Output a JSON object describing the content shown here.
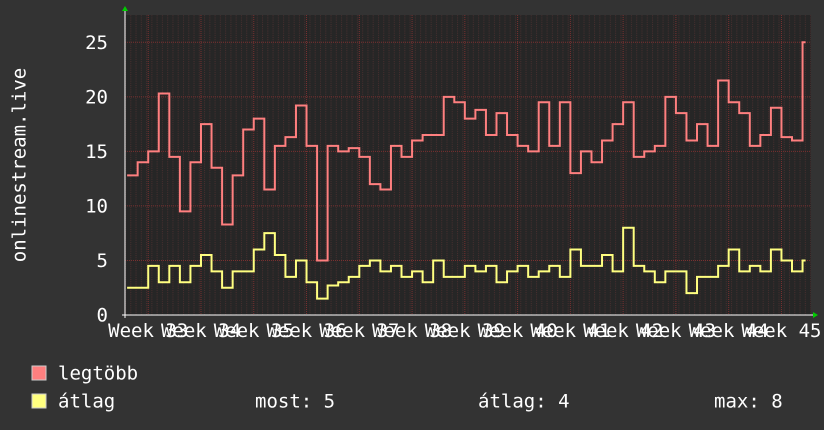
{
  "chart_data": {
    "type": "line",
    "y_label": "onlinestream.live",
    "xlim": [
      32.56,
      45.56
    ],
    "xticks": [
      {
        "value": 33,
        "label": "Week 33"
      },
      {
        "value": 34,
        "label": "Week 34"
      },
      {
        "value": 35,
        "label": "Week 35"
      },
      {
        "value": 36,
        "label": "Week 36"
      },
      {
        "value": 37,
        "label": "Week 37"
      },
      {
        "value": 38,
        "label": "Week 38"
      },
      {
        "value": 39,
        "label": "Week 39"
      },
      {
        "value": 40,
        "label": "Week 40"
      },
      {
        "value": 41,
        "label": "Week 41"
      },
      {
        "value": 42,
        "label": "Week 42"
      },
      {
        "value": 43,
        "label": "Week 43"
      },
      {
        "value": 44,
        "label": "Week 44"
      },
      {
        "value": 45,
        "label": "Week 45"
      }
    ],
    "ylim": [
      0,
      27.5
    ],
    "yticks": [
      0,
      5,
      10,
      15,
      20,
      25
    ],
    "grid": true,
    "step": true,
    "x": [
      32.6,
      32.8,
      33.0,
      33.2,
      33.4,
      33.6,
      33.8,
      34.0,
      34.2,
      34.4,
      34.6,
      34.8,
      35.0,
      35.2,
      35.4,
      35.6,
      35.8,
      36.0,
      36.2,
      36.4,
      36.6,
      36.8,
      37.0,
      37.2,
      37.4,
      37.6,
      37.8,
      38.0,
      38.2,
      38.4,
      38.6,
      38.8,
      39.0,
      39.2,
      39.4,
      39.6,
      39.8,
      40.0,
      40.2,
      40.4,
      40.6,
      40.8,
      41.0,
      41.2,
      41.4,
      41.6,
      41.8,
      42.0,
      42.2,
      42.4,
      42.6,
      42.8,
      43.0,
      43.2,
      43.4,
      43.6,
      43.8,
      44.0,
      44.2,
      44.4,
      44.6,
      44.8,
      45.0,
      45.2,
      45.4
    ],
    "series": [
      {
        "name": "legtöbb",
        "color": "#ff7f7f",
        "values": [
          12.8,
          14,
          15,
          20.3,
          14.5,
          9.5,
          14,
          17.5,
          13.5,
          8.3,
          12.8,
          17,
          18,
          11.5,
          15.5,
          16.3,
          19.2,
          15.5,
          5,
          15.5,
          15,
          15.3,
          14.5,
          12,
          11.5,
          15.5,
          14.5,
          16,
          16.5,
          16.5,
          20,
          19.5,
          18,
          18.8,
          16.5,
          18.5,
          16.5,
          15.5,
          15,
          19.5,
          15.5,
          19.5,
          13,
          15,
          14,
          16,
          17.5,
          19.5,
          14.5,
          15,
          15.5,
          20,
          18.5,
          16,
          17.5,
          15.5,
          21.5,
          19.5,
          18.5,
          15.5,
          16.5,
          19,
          16.3,
          16,
          25
        ]
      },
      {
        "name": "átlag",
        "color": "#ffff80",
        "values": [
          2.5,
          2.5,
          4.5,
          3,
          4.5,
          3,
          4.5,
          5.5,
          4,
          2.5,
          4,
          4,
          6,
          7.5,
          5.5,
          3.5,
          5,
          3,
          1.5,
          2.7,
          3,
          3.5,
          4.5,
          5,
          4,
          4.5,
          3.5,
          4,
          3,
          5,
          3.5,
          3.5,
          4.5,
          4,
          4.5,
          3,
          4,
          4.5,
          3.5,
          4,
          4.5,
          3.5,
          6,
          4.5,
          4.5,
          5.5,
          4,
          8,
          4.5,
          4,
          3,
          4,
          4,
          2,
          3.5,
          3.5,
          4.5,
          6,
          4,
          4.5,
          4,
          6,
          5,
          4,
          5
        ]
      }
    ],
    "stats": [
      "most: 5",
      "átlag: 4",
      "max: 8"
    ]
  }
}
